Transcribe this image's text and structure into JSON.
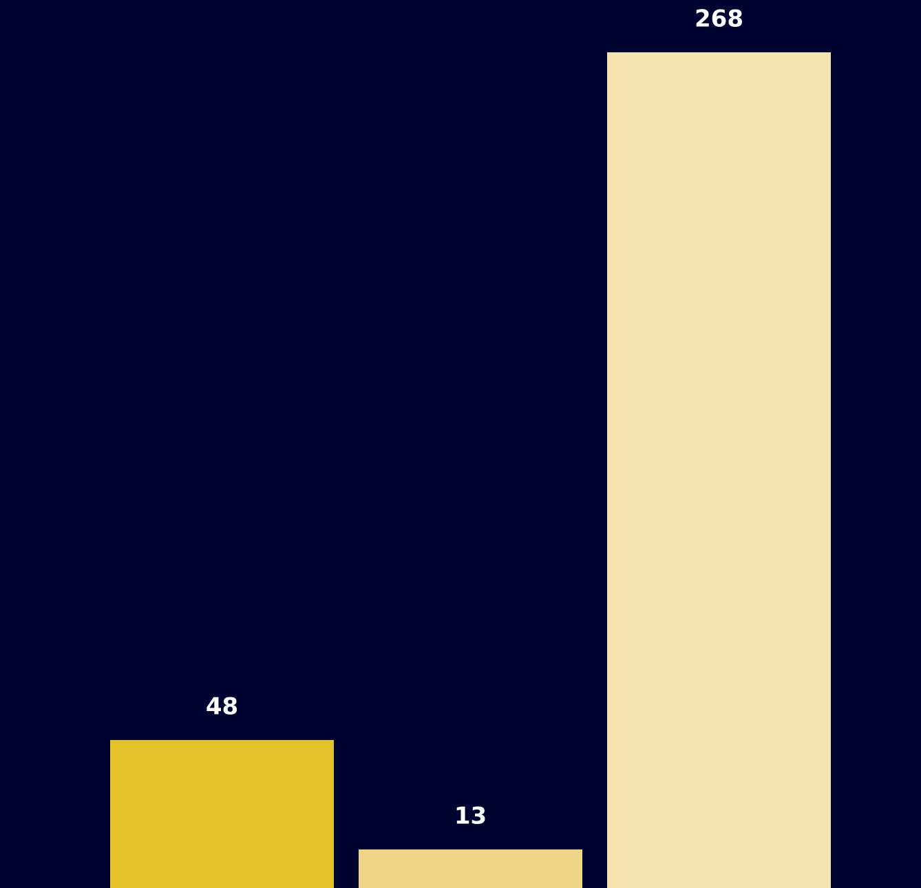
{
  "chart_data": {
    "type": "bar",
    "values": [
      48,
      13,
      268
    ],
    "colors": [
      "#e6c229",
      "#eed587",
      "#f6e4b0"
    ]
  }
}
